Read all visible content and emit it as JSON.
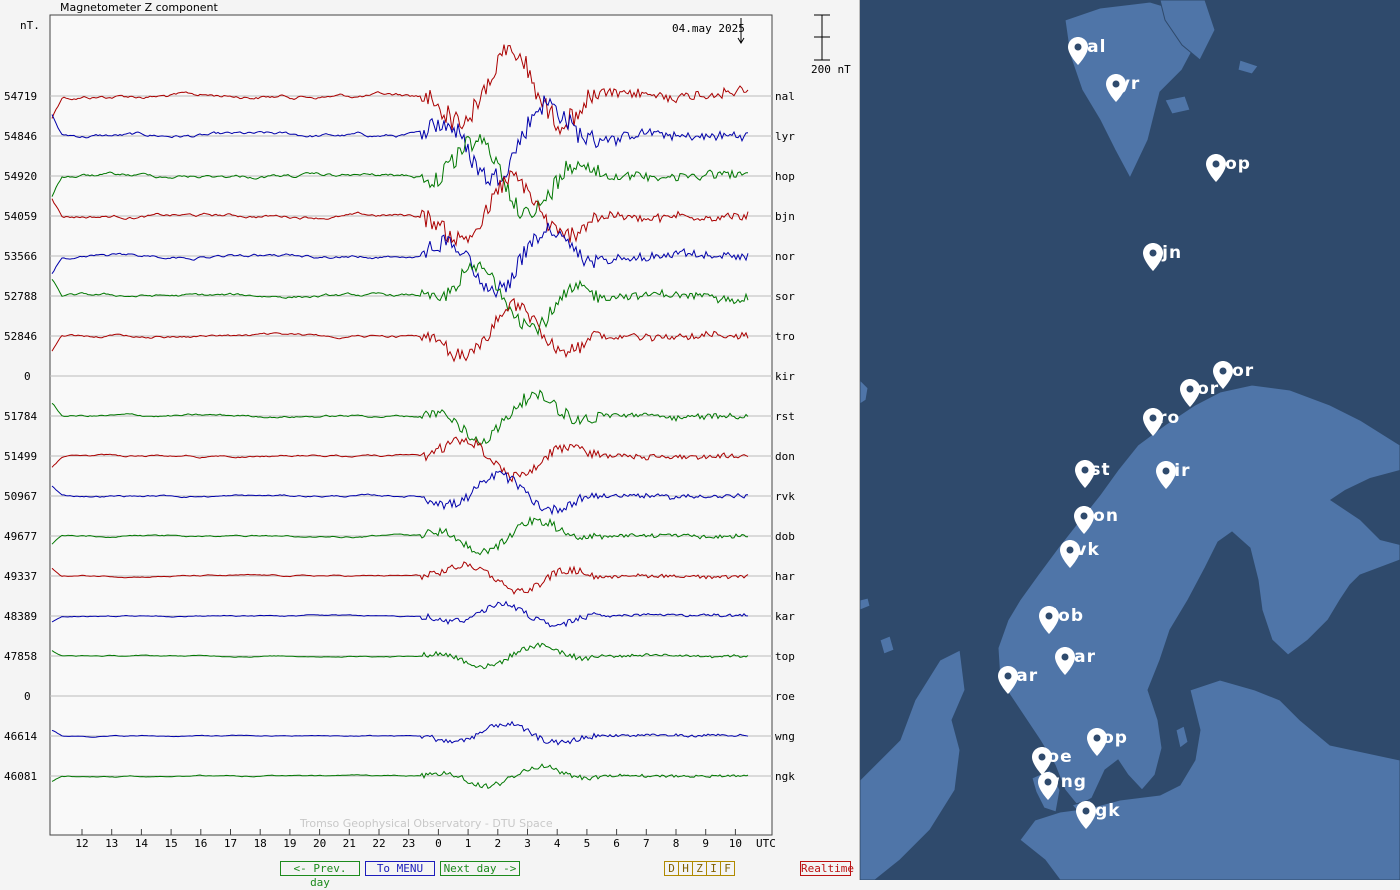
{
  "chart_data": {
    "type": "line",
    "title": "Magnetometer Z component",
    "unit_label": "nT.",
    "date_label": "04.may 2025",
    "scale_label": "200 nT",
    "watermark": "Tromso Geophysical Observatory - DTU Space",
    "x_unit": "UTC",
    "x_ticks": [
      "12",
      "13",
      "14",
      "15",
      "16",
      "17",
      "18",
      "19",
      "20",
      "21",
      "22",
      "23",
      "0",
      "1",
      "2",
      "3",
      "4",
      "5",
      "6",
      "7",
      "8",
      "9",
      "10"
    ],
    "stations": [
      {
        "code": "nal",
        "baseline": "54719",
        "color": "#aa0000"
      },
      {
        "code": "lyr",
        "baseline": "54846",
        "color": "#0000aa"
      },
      {
        "code": "hop",
        "baseline": "54920",
        "color": "#007700"
      },
      {
        "code": "bjn",
        "baseline": "54059",
        "color": "#aa0000"
      },
      {
        "code": "nor",
        "baseline": "53566",
        "color": "#0000aa"
      },
      {
        "code": "sor",
        "baseline": "52788",
        "color": "#007700"
      },
      {
        "code": "tro",
        "baseline": "52846",
        "color": "#aa0000"
      },
      {
        "code": "kir",
        "baseline": "0",
        "color": "none"
      },
      {
        "code": "rst",
        "baseline": "51784",
        "color": "#007700"
      },
      {
        "code": "don",
        "baseline": "51499",
        "color": "#aa0000"
      },
      {
        "code": "rvk",
        "baseline": "50967",
        "color": "#0000aa"
      },
      {
        "code": "dob",
        "baseline": "49677",
        "color": "#007700"
      },
      {
        "code": "har",
        "baseline": "49337",
        "color": "#aa0000"
      },
      {
        "code": "kar",
        "baseline": "48389",
        "color": "#0000aa"
      },
      {
        "code": "top",
        "baseline": "47858",
        "color": "#007700"
      },
      {
        "code": "roe",
        "baseline": "0",
        "color": "none"
      },
      {
        "code": "wng",
        "baseline": "46614",
        "color": "#0000aa"
      },
      {
        "code": "ngk",
        "baseline": "46081",
        "color": "#007700"
      }
    ]
  },
  "nav": {
    "prev": "<- Prev. day",
    "menu": "To MENU",
    "next": "Next day ->",
    "components": [
      "D",
      "H",
      "Z",
      "I",
      "F"
    ],
    "realtime": "Realtime"
  },
  "map": {
    "stations": [
      {
        "code": "nal"
      },
      {
        "code": "lyr"
      },
      {
        "code": "hop"
      },
      {
        "code": "bjn"
      },
      {
        "code": "nor"
      },
      {
        "code": "sor"
      },
      {
        "code": "tro"
      },
      {
        "code": "rst"
      },
      {
        "code": "kir"
      },
      {
        "code": "don"
      },
      {
        "code": "rvk"
      },
      {
        "code": "dob"
      },
      {
        "code": "har"
      },
      {
        "code": "kar"
      },
      {
        "code": "top"
      },
      {
        "code": "roe"
      },
      {
        "code": "wng"
      },
      {
        "code": "ngk"
      }
    ]
  }
}
